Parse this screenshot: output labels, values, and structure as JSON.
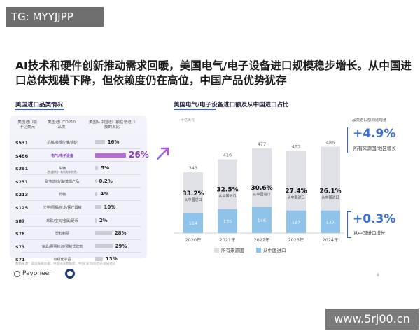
{
  "watermark": "TG: MYYJJPP",
  "headline": "AI技术和硬件创新推动需求回暖，美国电气/电子设备进口规模稳步增长。从中国进口总体规模下降，但依赖度仍在高位，中国产品优势犹存",
  "left_panel": {
    "title": "美国进口品类情况",
    "col1": "美国进口额",
    "col1_unit": "十亿美元",
    "col2": "美国进口TOP10品类",
    "col3": "美国从中国进口额在总进口额的占比",
    "rows": [
      {
        "value": "$531",
        "category": "机械/核反应堆/锅炉",
        "sub": "",
        "pct": "16%",
        "share": 16,
        "highlight": false
      },
      {
        "value": "$486",
        "category": "电气/电子设备",
        "sub": "",
        "pct": "26%",
        "share": 26,
        "highlight": true
      },
      {
        "value": "$391",
        "category": "车辆",
        "sub": "(铁道除外, 有轨电车除外)",
        "pct": "5%",
        "share": 5,
        "highlight": false
      },
      {
        "value": "$251",
        "category": "矿物燃料/油/蒸馏产品",
        "sub": "",
        "pct": "0.2%",
        "share": 0.2,
        "highlight": false
      },
      {
        "value": "$213",
        "category": "药物",
        "sub": "",
        "pct": "4%",
        "share": 4,
        "highlight": false
      },
      {
        "value": "$125",
        "category": "光学/照相/技术/医疗器械",
        "sub": "",
        "pct": "10%",
        "share": 10,
        "highlight": false
      },
      {
        "value": "$87",
        "category": "珍珠/宝石/金属/硬币",
        "sub": "",
        "pct": "2%",
        "share": 2,
        "highlight": false
      },
      {
        "value": "$78",
        "category": "塑料制品",
        "sub": "",
        "pct": "28%",
        "share": 28,
        "highlight": false
      },
      {
        "value": "$73",
        "category": "家具/照明标识/预制式建筑",
        "sub": "",
        "pct": "29%",
        "share": 29,
        "highlight": false
      },
      {
        "value": "$71",
        "category": "有机化学品",
        "sub": "",
        "pct": "13%",
        "share": 13,
        "highlight": false
      }
    ]
  },
  "chart_data": {
    "type": "bar",
    "title": "美国电气/电子设备进口额及从中国进口占比",
    "unit_label": "十亿美元",
    "categories": [
      "2020年",
      "2021年",
      "2022年",
      "2023年",
      "2024年"
    ],
    "series": [
      {
        "name": "所有来源国",
        "values": [
          343,
          416,
          477,
          463,
          486
        ],
        "color": "#dfe1e6"
      },
      {
        "name": "从中国进口",
        "values": [
          114,
          135,
          146,
          127,
          127
        ],
        "color": "#8fc3ea"
      }
    ],
    "china_share_labels": [
      "33.2%",
      "32.5%",
      "30.6%",
      "27.4%",
      "26.1%"
    ],
    "share_sublabel": "从中国进口",
    "ylim": [
      0,
      500
    ]
  },
  "right_notes": {
    "growth_header": "品类进口额同比增速",
    "all_pct": "+4.9%",
    "all_label": "所有来源国/地区增长",
    "china_pct": "+0.3%",
    "china_label": "从中国进口增长"
  },
  "footer": {
    "source": "数据来源：美国海关总署、中国海关数据库、中国(深圳)综合开发研究院",
    "logo_text": "Payoneer",
    "page_number": "8"
  },
  "site_watermark": "www.5rj00.cn"
}
